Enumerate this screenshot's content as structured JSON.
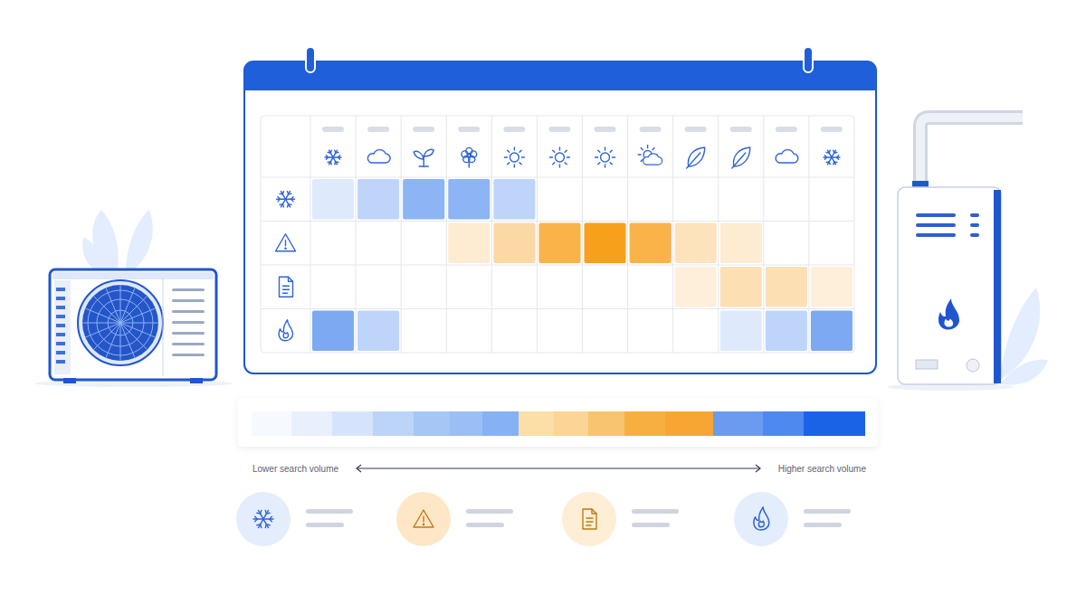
{
  "chart_data": {
    "type": "heatmap",
    "series": [
      {
        "color": "#5c94ef",
        "values": [
          1,
          2,
          3.5,
          3.5,
          2,
          0,
          0,
          0,
          0,
          0,
          0,
          0
        ]
      },
      {
        "color": "#f7a01c",
        "values": [
          0,
          0,
          0,
          1,
          2,
          4,
          5,
          4,
          1.5,
          1,
          0,
          0
        ]
      },
      {
        "color": "#f7b040",
        "values": [
          0,
          0,
          0,
          0,
          0,
          0,
          0,
          0,
          1,
          2,
          2,
          1
        ]
      },
      {
        "color": "#5c94ef",
        "values": [
          4,
          2,
          0,
          0,
          0,
          0,
          0,
          0,
          0,
          1,
          2,
          4
        ]
      }
    ],
    "colorbar": {
      "range": [
        0,
        5
      ],
      "low_label": "Lower search volume",
      "high_label": "Higher search volume"
    }
  }
}
